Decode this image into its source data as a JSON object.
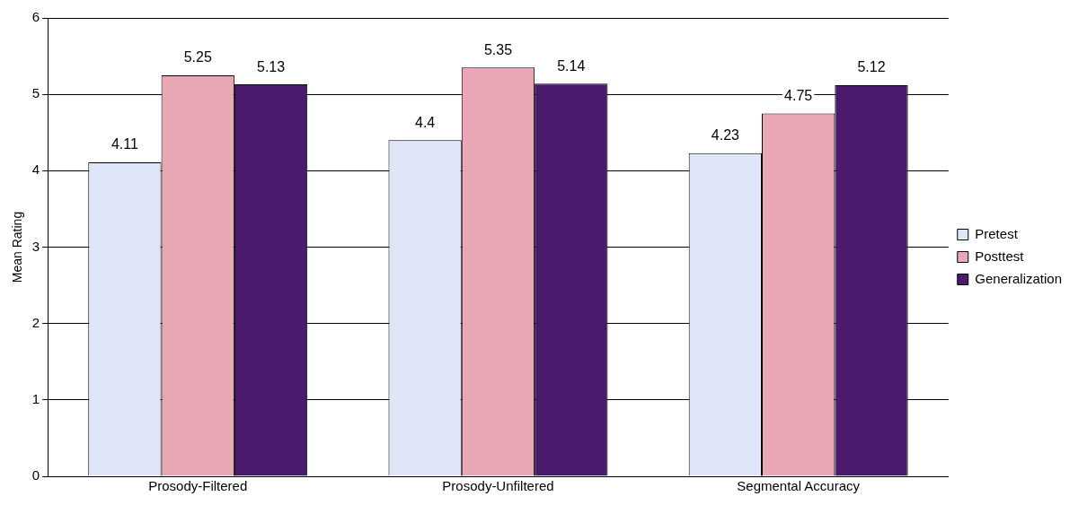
{
  "chart_data": {
    "type": "bar",
    "ylabel": "Mean Rating",
    "categories": [
      "Prosody-Filtered",
      "Prosody-Unfiltered",
      "Segmental Accuracy"
    ],
    "series": [
      {
        "name": "Pretest",
        "color": "#dfe6f8",
        "values": [
          4.11,
          4.4,
          4.23
        ]
      },
      {
        "name": "Posttest",
        "color": "#e9a7b6",
        "values": [
          5.25,
          5.35,
          4.75
        ]
      },
      {
        "name": "Generalization",
        "color": "#4a1a6c",
        "values": [
          5.13,
          5.14,
          5.12
        ]
      }
    ],
    "ylim": [
      0,
      6
    ],
    "yticks": [
      0,
      1,
      2,
      3,
      4,
      5,
      6
    ],
    "grid": "y",
    "legend": "right",
    "data_labels": true
  }
}
